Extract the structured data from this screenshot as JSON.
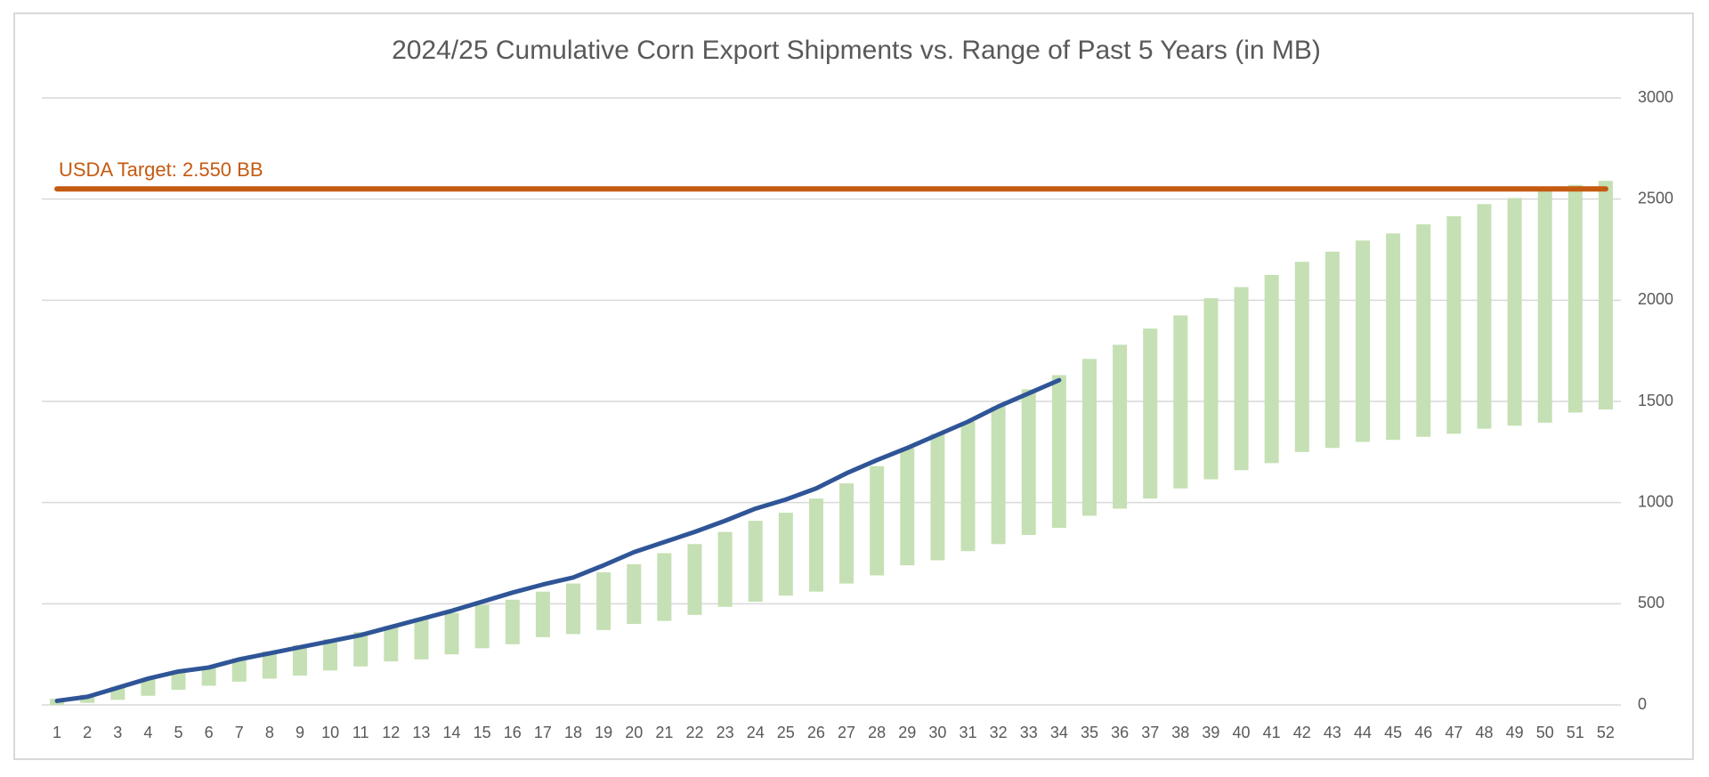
{
  "chart_data": {
    "type": "range-bar-line",
    "title": "2024/25 Cumulative Corn Export Shipments vs. Range of Past 5 Years (in MB)",
    "categories": [
      1,
      2,
      3,
      4,
      5,
      6,
      7,
      8,
      9,
      10,
      11,
      12,
      13,
      14,
      15,
      16,
      17,
      18,
      19,
      20,
      21,
      22,
      23,
      24,
      25,
      26,
      27,
      28,
      29,
      30,
      31,
      32,
      33,
      34,
      35,
      36,
      37,
      38,
      39,
      40,
      41,
      42,
      43,
      44,
      45,
      46,
      47,
      48,
      49,
      50,
      51,
      52
    ],
    "range": {
      "color": "#c5e0b4",
      "low": [
        0,
        10,
        25,
        45,
        75,
        95,
        115,
        130,
        145,
        170,
        190,
        215,
        225,
        250,
        280,
        300,
        335,
        350,
        370,
        400,
        415,
        445,
        485,
        510,
        540,
        560,
        600,
        640,
        690,
        715,
        760,
        795,
        840,
        875,
        935,
        970,
        1020,
        1070,
        1115,
        1160,
        1195,
        1250,
        1270,
        1300,
        1310,
        1325,
        1340,
        1365,
        1380,
        1395,
        1445,
        1460
      ],
      "high": [
        30,
        50,
        90,
        130,
        165,
        190,
        230,
        265,
        295,
        325,
        360,
        390,
        430,
        455,
        495,
        520,
        560,
        600,
        655,
        695,
        750,
        795,
        855,
        910,
        950,
        1020,
        1095,
        1180,
        1270,
        1340,
        1400,
        1475,
        1560,
        1630,
        1710,
        1780,
        1860,
        1925,
        2010,
        2065,
        2125,
        2190,
        2240,
        2295,
        2330,
        2375,
        2415,
        2475,
        2505,
        2545,
        2570,
        2590
      ]
    },
    "line": {
      "color": "#2f5597",
      "values": [
        20,
        40,
        85,
        130,
        165,
        185,
        225,
        255,
        285,
        315,
        345,
        385,
        425,
        465,
        510,
        555,
        595,
        630,
        690,
        755,
        805,
        855,
        910,
        970,
        1015,
        1070,
        1145,
        1210,
        1270,
        1335,
        1400,
        1475,
        1540,
        1605,
        null,
        null,
        null,
        null,
        null,
        null,
        null,
        null,
        null,
        null,
        null,
        null,
        null,
        null,
        null,
        null,
        null,
        null
      ]
    },
    "target": {
      "value": 2550,
      "label": "USDA Target: 2.550 BB",
      "color": "#c55a11"
    },
    "ylim": [
      0,
      3000
    ],
    "yticks": [
      0,
      500,
      1000,
      1500,
      2000,
      2500,
      3000
    ],
    "grid": true
  }
}
